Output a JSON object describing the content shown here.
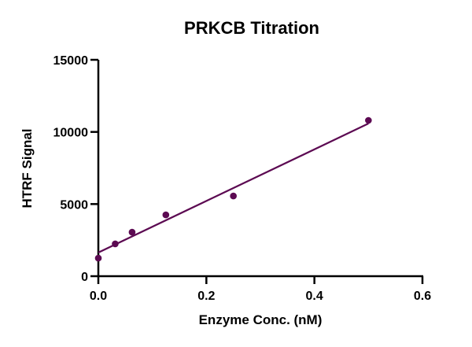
{
  "chart_data": {
    "type": "scatter",
    "title": "PRKCB Titration",
    "xlabel": "Enzyme Conc. (nM)",
    "ylabel": "HTRF Signal",
    "xlim": [
      0,
      0.6
    ],
    "ylim": [
      0,
      15000
    ],
    "x_ticks": [
      0,
      0.2,
      0.4,
      0.6
    ],
    "x_tick_labels": [
      "0.0",
      "0.2",
      "0.4",
      "0.6"
    ],
    "y_ticks": [
      0,
      5000,
      10000,
      15000
    ],
    "y_tick_labels": [
      "0",
      "5000",
      "10000",
      "15000"
    ],
    "grid": false,
    "series": [
      {
        "name": "PRKCB",
        "color": "#5c0a52",
        "x": [
          0,
          0.03125,
          0.0625,
          0.125,
          0.25,
          0.5
        ],
        "y": [
          1250,
          2240,
          3050,
          4250,
          5560,
          10800
        ]
      }
    ],
    "fit_line": {
      "color": "#5c0a52",
      "x": [
        0,
        0.5
      ],
      "y": [
        1640,
        10580
      ]
    }
  }
}
